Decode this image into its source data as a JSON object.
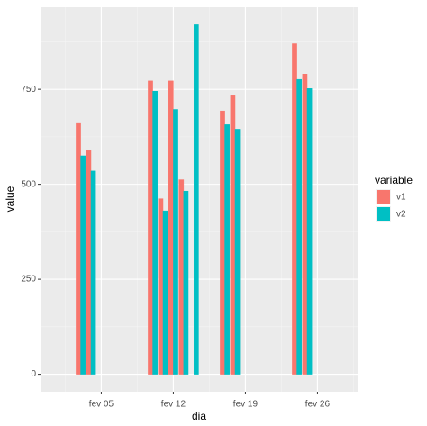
{
  "chart_data": {
    "type": "bar",
    "x_label": "dia",
    "y_label": "value",
    "legend_title": "variable",
    "x": [
      1,
      2,
      3,
      4,
      5,
      6,
      7,
      8,
      9,
      10,
      11,
      12,
      13,
      14,
      15,
      16,
      17,
      18,
      19,
      20,
      21,
      22,
      23,
      24,
      25,
      26,
      27,
      28
    ],
    "series": [
      {
        "name": "v1",
        "color": "#F8766D",
        "values": [
          0,
          0,
          660,
          589,
          0,
          0,
          0,
          0,
          0,
          772,
          462,
          772,
          512,
          0,
          0,
          0,
          693,
          733,
          0,
          0,
          0,
          0,
          0,
          870,
          790,
          0,
          0,
          0
        ]
      },
      {
        "name": "v2",
        "color": "#00BFC4",
        "values": [
          0,
          0,
          575,
          535,
          0,
          0,
          0,
          0,
          0,
          745,
          430,
          697,
          482,
          920,
          0,
          0,
          657,
          645,
          0,
          0,
          0,
          0,
          0,
          776,
          752,
          0,
          0,
          0
        ]
      }
    ],
    "xlim": [
      -0.9,
      29.9
    ],
    "xticks": [
      {
        "value": 5,
        "label": "fev 05"
      },
      {
        "value": 12,
        "label": "fev 12"
      },
      {
        "value": 19,
        "label": "fev 19"
      },
      {
        "value": 26,
        "label": "fev 26"
      }
    ],
    "ylim": [
      -46,
      966
    ],
    "yticks": [
      0,
      250,
      500,
      750
    ],
    "grid": true,
    "legend": "right"
  }
}
